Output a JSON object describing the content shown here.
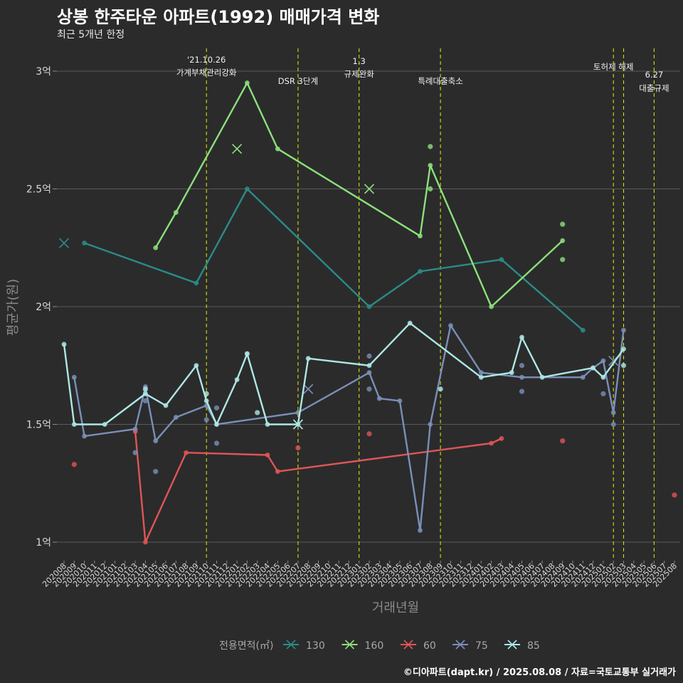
{
  "title": "상봉 한주타운 아파트(1992) 매매가격 변화",
  "subtitle": "최근 5개년 한정",
  "caption": "©디아파트(dapt.kr) / 2025.08.08 / 자료=국토교통부 실거래가",
  "chart_data": {
    "type": "line",
    "xlabel": "거래년월",
    "ylabel": "평균가(원)",
    "x_ticks": [
      "202008",
      "202009",
      "202010",
      "202011",
      "202012",
      "202101",
      "202102",
      "202103",
      "202104",
      "202105",
      "202106",
      "202107",
      "202108",
      "202109",
      "202110",
      "202111",
      "202112",
      "202201",
      "202202",
      "202203",
      "202204",
      "202205",
      "202206",
      "202207",
      "202208",
      "202209",
      "202210",
      "202211",
      "202212",
      "202301",
      "202302",
      "202303",
      "202304",
      "202305",
      "202306",
      "202307",
      "202308",
      "202309",
      "202310",
      "202311",
      "202312",
      "202401",
      "202402",
      "202403",
      "202404",
      "202405",
      "202406",
      "202407",
      "202408",
      "202409",
      "202410",
      "202411",
      "202412",
      "202501",
      "202502",
      "202503",
      "202504",
      "202505",
      "202506",
      "202507",
      "202508"
    ],
    "y_ticks": [
      {
        "value": 1.0,
        "label": "1억"
      },
      {
        "value": 1.5,
        "label": "1.5억"
      },
      {
        "value": 2.0,
        "label": "2억"
      },
      {
        "value": 2.5,
        "label": "2.5억"
      },
      {
        "value": 3.0,
        "label": "3억"
      }
    ],
    "ylim": [
      0.9,
      3.1
    ],
    "grid": true,
    "legend_title": "전용면적(㎡)",
    "legend_position": "bottom",
    "annotations": [
      {
        "x": "202110",
        "lines": [
          "'21.10.26",
          "가계부채관리강화"
        ]
      },
      {
        "x": "202207",
        "lines": [
          "DSR 3단계"
        ]
      },
      {
        "x": "202301",
        "lines": [
          "1.3",
          "규제완화"
        ]
      },
      {
        "x": "202309",
        "lines": [
          "특례대출축소"
        ]
      },
      {
        "x": "202502",
        "lines": [
          "토허제 해제"
        ]
      },
      {
        "x": "202503",
        "lines": []
      },
      {
        "x": "202506",
        "lines": [
          "6.27",
          "대출규제"
        ]
      }
    ],
    "series": [
      {
        "name": "130",
        "color": "#2a8c86",
        "line": [
          [
            "202010",
            2.27
          ],
          [
            "202109",
            2.1
          ],
          [
            "202202",
            2.5
          ],
          [
            "202302",
            2.0
          ],
          [
            "202307",
            2.15
          ],
          [
            "202403",
            2.2
          ],
          [
            "202411",
            1.9
          ]
        ],
        "points": [],
        "crosses": [
          [
            "202008",
            2.27
          ]
        ]
      },
      {
        "name": "160",
        "color": "#8ce07a",
        "line": [
          [
            "202105",
            2.25
          ],
          [
            "202107",
            2.4
          ],
          [
            "202202",
            2.95
          ],
          [
            "202205",
            2.67
          ],
          [
            "202307",
            2.3
          ],
          [
            "202308",
            2.6
          ],
          [
            "202402",
            2.0
          ],
          [
            "202409",
            2.28
          ]
        ],
        "points": [
          [
            "202308",
            2.68
          ],
          [
            "202308",
            2.5
          ],
          [
            "202409",
            2.35
          ],
          [
            "202409",
            2.2
          ]
        ],
        "crosses": [
          [
            "202201",
            2.67
          ],
          [
            "202302",
            2.5
          ]
        ]
      },
      {
        "name": "60",
        "color": "#e05555",
        "line": [
          [
            "202103",
            1.47
          ],
          [
            "202104",
            1.0
          ],
          [
            "202108",
            1.38
          ],
          [
            "202204",
            1.37
          ],
          [
            "202205",
            1.3
          ],
          [
            "202402",
            1.42
          ],
          [
            "202403",
            1.44
          ]
        ],
        "points": [
          [
            "202009",
            1.33
          ],
          [
            "202207",
            1.4
          ],
          [
            "202302",
            1.46
          ],
          [
            "202409",
            1.43
          ],
          [
            "202508",
            1.2
          ]
        ],
        "crosses": []
      },
      {
        "name": "75",
        "color": "#7a90b8",
        "line": [
          [
            "202009",
            1.7
          ],
          [
            "202010",
            1.45
          ],
          [
            "202103",
            1.48
          ],
          [
            "202104",
            1.66
          ],
          [
            "202105",
            1.43
          ],
          [
            "202107",
            1.53
          ],
          [
            "202110",
            1.58
          ],
          [
            "202111",
            1.5
          ],
          [
            "202207",
            1.55
          ],
          [
            "202302",
            1.72
          ],
          [
            "202303",
            1.61
          ],
          [
            "202305",
            1.6
          ],
          [
            "202307",
            1.05
          ],
          [
            "202308",
            1.5
          ],
          [
            "202310",
            1.92
          ],
          [
            "202401",
            1.72
          ],
          [
            "202405",
            1.7
          ],
          [
            "202411",
            1.7
          ],
          [
            "202412",
            1.74
          ],
          [
            "202501",
            1.77
          ],
          [
            "202502",
            1.55
          ],
          [
            "202503",
            1.9
          ]
        ],
        "points": [
          [
            "202103",
            1.38
          ],
          [
            "202104",
            1.6
          ],
          [
            "202105",
            1.3
          ],
          [
            "202110",
            1.52
          ],
          [
            "202111",
            1.42
          ],
          [
            "202111",
            1.57
          ],
          [
            "202202",
            1.8
          ],
          [
            "202302",
            1.65
          ],
          [
            "202302",
            1.79
          ],
          [
            "202405",
            1.75
          ],
          [
            "202405",
            1.64
          ],
          [
            "202501",
            1.63
          ],
          [
            "202502",
            1.5
          ]
        ],
        "crosses": [
          [
            "202208",
            1.65
          ],
          [
            "202502",
            1.77
          ]
        ]
      },
      {
        "name": "85",
        "color": "#aee8e4",
        "line": [
          [
            "202008",
            1.84
          ],
          [
            "202009",
            1.5
          ],
          [
            "202012",
            1.5
          ],
          [
            "202104",
            1.63
          ],
          [
            "202106",
            1.58
          ],
          [
            "202109",
            1.75
          ],
          [
            "202110",
            1.6
          ],
          [
            "202111",
            1.5
          ],
          [
            "202201",
            1.69
          ],
          [
            "202202",
            1.8
          ],
          [
            "202204",
            1.5
          ],
          [
            "202207",
            1.5
          ],
          [
            "202208",
            1.78
          ],
          [
            "202302",
            1.75
          ],
          [
            "202306",
            1.93
          ],
          [
            "202401",
            1.7
          ],
          [
            "202404",
            1.72
          ],
          [
            "202405",
            1.87
          ],
          [
            "202407",
            1.7
          ],
          [
            "202412",
            1.74
          ],
          [
            "202501",
            1.7
          ],
          [
            "202503",
            1.82
          ]
        ],
        "points": [
          [
            "202104",
            1.65
          ],
          [
            "202110",
            1.63
          ],
          [
            "202203",
            1.55
          ],
          [
            "202309",
            1.65
          ],
          [
            "202503",
            1.75
          ]
        ],
        "crosses": [
          [
            "202207",
            1.5
          ]
        ]
      }
    ]
  }
}
